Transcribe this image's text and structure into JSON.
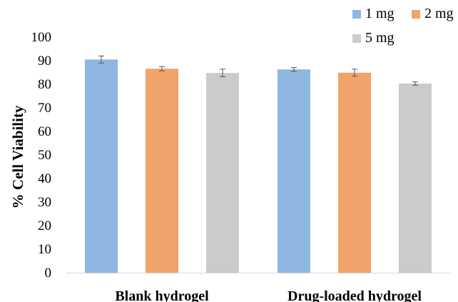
{
  "chart_data": {
    "type": "bar",
    "categories": [
      "Blank hydrogel",
      "Drug-loaded hydrogel"
    ],
    "ylabel": "% Cell Viability",
    "ylim": [
      0,
      100
    ],
    "yticks": [
      0,
      10,
      20,
      30,
      40,
      50,
      60,
      70,
      80,
      90,
      100
    ],
    "legend_placement": "top-right",
    "series": [
      {
        "name": "1 mg",
        "color": "#8EB8E2",
        "values": [
          90.5,
          86.3
        ],
        "errors": [
          1.5,
          0.8
        ]
      },
      {
        "name": "2 mg",
        "color": "#F0A46C",
        "values": [
          86.6,
          84.9
        ],
        "errors": [
          0.9,
          1.5
        ]
      },
      {
        "name": "5 mg",
        "color": "#CBCBCB",
        "values": [
          84.8,
          80.3
        ],
        "errors": [
          1.6,
          0.7
        ]
      }
    ]
  }
}
